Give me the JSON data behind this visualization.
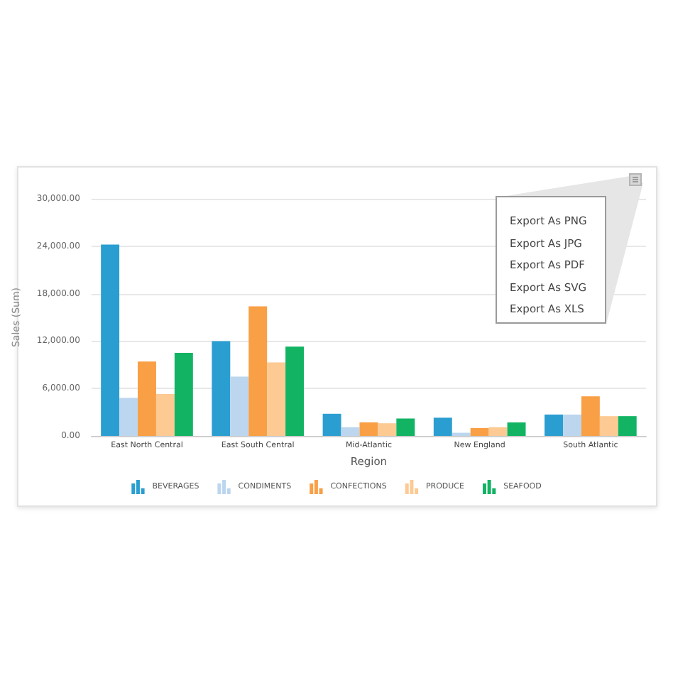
{
  "chart_data": {
    "type": "bar",
    "xlabel": "Region",
    "ylabel": "Sales (Sum)",
    "categories": [
      "East North Central",
      "East South Central",
      "Mid-Atlantic",
      "New England",
      "South Atlantic"
    ],
    "series": [
      {
        "name": "BEVERAGES",
        "color": "#2b9ed1",
        "values": [
          24200,
          12000,
          2800,
          2300,
          2700
        ]
      },
      {
        "name": "CONDIMENTS",
        "color": "#bcd6ef",
        "values": [
          4800,
          7500,
          1100,
          400,
          2700
        ]
      },
      {
        "name": "CONFECTIONS",
        "color": "#f99f45",
        "values": [
          9400,
          16400,
          1700,
          1000,
          5000
        ]
      },
      {
        "name": "PRODUCE",
        "color": "#fdca93",
        "values": [
          5300,
          9300,
          1600,
          1100,
          2500
        ]
      },
      {
        "name": "SEAFOOD",
        "color": "#12b463",
        "values": [
          10500,
          11300,
          2200,
          1700,
          2500
        ]
      }
    ],
    "ylim": [
      0,
      30000
    ],
    "yticks": [
      {
        "value": 0,
        "label": "0.00"
      },
      {
        "value": 6000,
        "label": "6,000.00"
      },
      {
        "value": 12000,
        "label": "12,000.00"
      },
      {
        "value": 18000,
        "label": "18,000.00"
      },
      {
        "value": 24000,
        "label": "24,000.00"
      },
      {
        "value": 30000,
        "label": "30,000.00"
      }
    ],
    "grid": "y",
    "legend": "bottom",
    "annotations": [
      "Export As PNG",
      "Export As JPG",
      "Export As PDF",
      "Export As SVG",
      "Export As XLS"
    ]
  }
}
